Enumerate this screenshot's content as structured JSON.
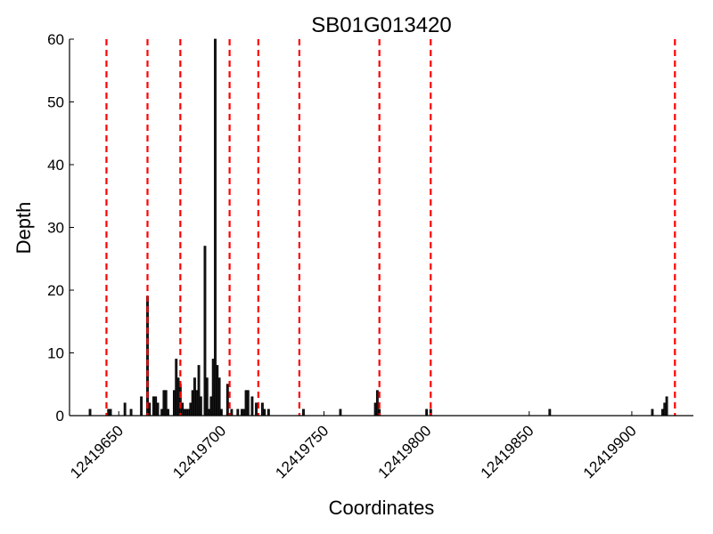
{
  "chart_data": {
    "type": "bar",
    "title": "SB01G013420",
    "xlabel": "Coordinates",
    "ylabel": "Depth",
    "xlim": [
      12419626,
      12419930
    ],
    "ylim": [
      0,
      60
    ],
    "x_ticks": [
      12419650,
      12419700,
      12419750,
      12419800,
      12419850,
      12419900
    ],
    "y_ticks": [
      0,
      10,
      20,
      30,
      40,
      50,
      60
    ],
    "grid": false,
    "bar_color": "#000000",
    "bar_fill": "#1a1a1a",
    "marker_color": "#ff0000",
    "series": [
      {
        "values": [
          [
            12419636,
            1
          ],
          [
            12419645,
            1
          ],
          [
            12419646,
            1
          ],
          [
            12419653,
            2
          ],
          [
            12419656,
            1
          ],
          [
            12419661,
            3
          ],
          [
            12419664,
            19
          ],
          [
            12419665,
            2
          ],
          [
            12419667,
            3
          ],
          [
            12419668,
            3
          ],
          [
            12419669,
            2
          ],
          [
            12419671,
            1
          ],
          [
            12419672,
            4
          ],
          [
            12419673,
            4
          ],
          [
            12419674,
            1
          ],
          [
            12419677,
            4
          ],
          [
            12419678,
            9
          ],
          [
            12419679,
            6
          ],
          [
            12419680,
            5
          ],
          [
            12419681,
            2
          ],
          [
            12419682,
            1
          ],
          [
            12419683,
            1
          ],
          [
            12419684,
            1
          ],
          [
            12419685,
            2
          ],
          [
            12419686,
            4
          ],
          [
            12419687,
            6
          ],
          [
            12419688,
            4
          ],
          [
            12419689,
            8
          ],
          [
            12419690,
            3
          ],
          [
            12419692,
            27
          ],
          [
            12419693,
            6
          ],
          [
            12419694,
            1
          ],
          [
            12419695,
            3
          ],
          [
            12419696,
            9
          ],
          [
            12419697,
            60
          ],
          [
            12419698,
            8
          ],
          [
            12419699,
            6
          ],
          [
            12419700,
            1
          ],
          [
            12419703,
            5
          ],
          [
            12419705,
            1
          ],
          [
            12419708,
            1
          ],
          [
            12419710,
            1
          ],
          [
            12419711,
            1
          ],
          [
            12419712,
            4
          ],
          [
            12419713,
            4
          ],
          [
            12419715,
            3
          ],
          [
            12419717,
            2
          ],
          [
            12419720,
            2
          ],
          [
            12419721,
            1
          ],
          [
            12419723,
            1
          ],
          [
            12419740,
            1
          ],
          [
            12419758,
            1
          ],
          [
            12419775,
            2
          ],
          [
            12419776,
            4
          ],
          [
            12419777,
            1
          ],
          [
            12419800,
            1
          ],
          [
            12419802,
            1
          ],
          [
            12419860,
            1
          ],
          [
            12419910,
            1
          ],
          [
            12419915,
            1
          ],
          [
            12419916,
            2
          ],
          [
            12419917,
            3
          ]
        ]
      }
    ],
    "marker_lines": [
      12419644,
      12419664,
      12419680,
      12419704,
      12419718,
      12419738,
      12419777,
      12419802,
      12419921
    ]
  }
}
